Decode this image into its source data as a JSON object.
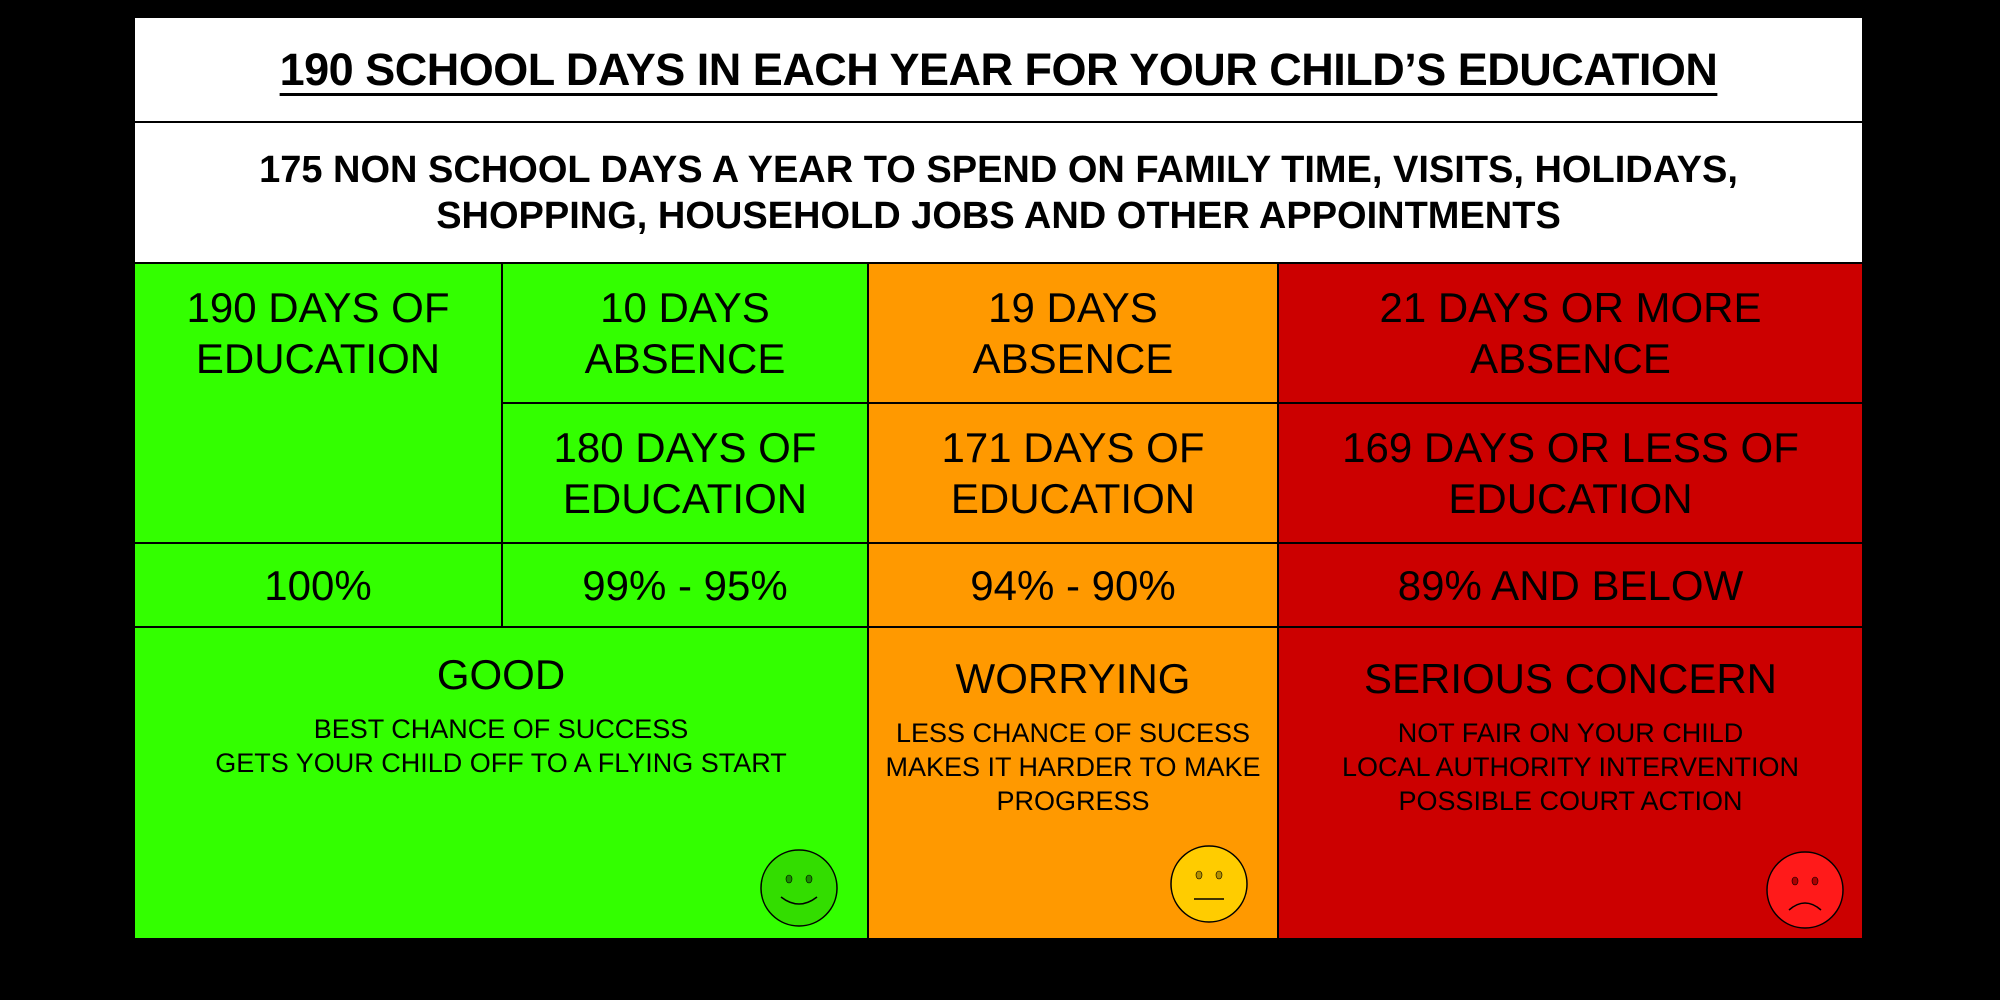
{
  "title": "190 SCHOOL DAYS IN EACH YEAR FOR YOUR CHILD’S EDUCATION",
  "subtitle": "175 NON SCHOOL DAYS A YEAR TO SPEND ON FAMILY TIME, VISITS, HOLIDAYS, SHOPPING, HOUSEHOLD JOBS AND OTHER APPOINTMENTS",
  "colors": {
    "green": "#33ff00",
    "orange": "#ff9900",
    "red": "#cc0000",
    "background": "#000000"
  },
  "columns": [
    {
      "absence": "",
      "education": "190 DAYS OF EDUCATION",
      "percent": "100%"
    },
    {
      "absence": "10 DAYS ABSENCE",
      "education": "180 DAYS OF EDUCATION",
      "percent": "99% - 95%"
    },
    {
      "absence": "19 DAYS ABSENCE",
      "education": "171 DAYS OF EDUCATION",
      "percent": "94% - 90%"
    },
    {
      "absence": "21 DAYS OR MORE ABSENCE",
      "education": "169 DAYS OR LESS OF EDUCATION",
      "percent": "89% AND BELOW"
    }
  ],
  "statuses": [
    {
      "heading": "GOOD",
      "lines": [
        "BEST CHANCE OF SUCCESS",
        "GETS YOUR CHILD OFF TO A FLYING START"
      ],
      "face": "happy-face-icon"
    },
    {
      "heading": "WORRYING",
      "lines": [
        "LESS CHANCE OF SUCESS",
        "MAKES IT HARDER TO MAKE",
        "PROGRESS"
      ],
      "face": "neutral-face-icon"
    },
    {
      "heading": "SERIOUS CONCERN",
      "lines": [
        "NOT FAIR ON YOUR CHILD",
        "LOCAL AUTHORITY INTERVENTION",
        "POSSIBLE COURT ACTION"
      ],
      "face": "sad-face-icon"
    }
  ]
}
